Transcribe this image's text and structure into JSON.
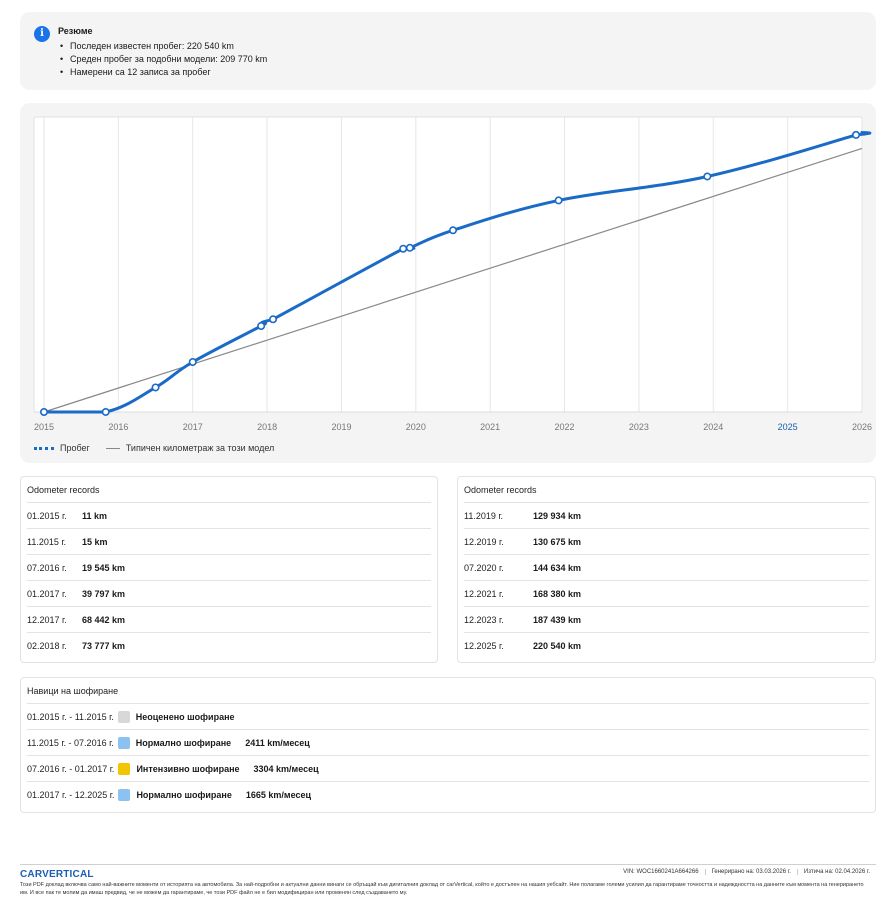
{
  "summary": {
    "title": "Резюме",
    "items": [
      "Последен известен пробег: 220 540 km",
      "Среден пробег за подобни модели: 209 770 km",
      "Намерени са 12 записа за пробег"
    ]
  },
  "chart_data": {
    "type": "line",
    "xlim": [
      2015,
      2026
    ],
    "ylim": [
      0,
      230000
    ],
    "x_ticks": [
      "2015",
      "2016",
      "2017",
      "2018",
      "2019",
      "2020",
      "2021",
      "2022",
      "2023",
      "2024",
      "2025",
      "2026"
    ],
    "highlight_tick": "2025",
    "series": [
      {
        "name": "Пробег",
        "color": "#1a6ac7",
        "points": [
          [
            2015.0,
            11
          ],
          [
            2015.83,
            15
          ],
          [
            2016.5,
            19545
          ],
          [
            2017.0,
            39797
          ],
          [
            2017.92,
            68442
          ],
          [
            2018.08,
            73777
          ],
          [
            2019.83,
            129934
          ],
          [
            2019.92,
            130675
          ],
          [
            2020.5,
            144634
          ],
          [
            2021.92,
            168380
          ],
          [
            2023.92,
            187439
          ],
          [
            2025.92,
            220540
          ]
        ],
        "extend_to": [
          2026.0,
          222500
        ]
      },
      {
        "name": "Типичен километраж за този модел",
        "color": "#888888",
        "points": [
          [
            2015.0,
            0
          ],
          [
            2026.0,
            209770
          ]
        ]
      }
    ],
    "colors": {
      "background": "#ffffff",
      "grid": "#e6e6e6",
      "tick": "#777777",
      "highlight": "#1a5fb4"
    }
  },
  "legend": {
    "mileage": "Пробег",
    "typical": "Типичен километраж за този модел"
  },
  "odometer_left": {
    "title": "Odometer records",
    "rows": [
      {
        "date": "01.2015 г.",
        "value": "11 km"
      },
      {
        "date": "11.2015 г.",
        "value": "15 km"
      },
      {
        "date": "07.2016 г.",
        "value": "19 545 km"
      },
      {
        "date": "01.2017 г.",
        "value": "39 797 km"
      },
      {
        "date": "12.2017 г.",
        "value": "68 442 km"
      },
      {
        "date": "02.2018 г.",
        "value": "73 777 km"
      }
    ]
  },
  "odometer_right": {
    "title": "Odometer records",
    "rows": [
      {
        "date": "11.2019 г.",
        "value": "129 934 km"
      },
      {
        "date": "12.2019 г.",
        "value": "130 675 km"
      },
      {
        "date": "07.2020 г.",
        "value": "144 634 km"
      },
      {
        "date": "12.2021 г.",
        "value": "168 380 km"
      },
      {
        "date": "12.2023 г.",
        "value": "187 439 km"
      },
      {
        "date": "12.2025 г.",
        "value": "220 540 km"
      }
    ]
  },
  "driving": {
    "title": "Навици на шофиране",
    "rows": [
      {
        "period": "01.2015 г. - 11.2015 г.",
        "style": "Неоценено шофиране",
        "rate": "",
        "color": "#d8d8d8"
      },
      {
        "period": "11.2015 г. - 07.2016 г.",
        "style": "Нормално шофиране",
        "rate": "2411 km/месец",
        "color": "#8cc2f0"
      },
      {
        "period": "07.2016 г. - 01.2017 г.",
        "style": "Интензивно шофиране",
        "rate": "3304 km/месец",
        "color": "#f5c400"
      },
      {
        "period": "01.2017 г. - 12.2025 г.",
        "style": "Нормално шофиране",
        "rate": "1665 km/месец",
        "color": "#8cc2f0"
      }
    ]
  },
  "footer": {
    "logo": "CARVERTICAL",
    "vin": "VIN: WOC1660241A664266",
    "generated": "Генерирано на: 03.03.2026 г.",
    "expires": "Изтича на: 02.04.2026 г.",
    "disclaimer": "Този PDF доклад включва само най-важните моменти от историята на автомобила. За най-подробни и актуални данни винаги се обръщай към дигиталния доклад от carVertical, който е достъпен на нашия уебсайт. Ние полагаме големи усилия да гарантираме точността и надеждността на данните към момента на генерирането им. И все пак те молим да имаш предвид, че не можем да гарантираме, че този PDF файл не е бил модифициран или променян след създаването му."
  }
}
